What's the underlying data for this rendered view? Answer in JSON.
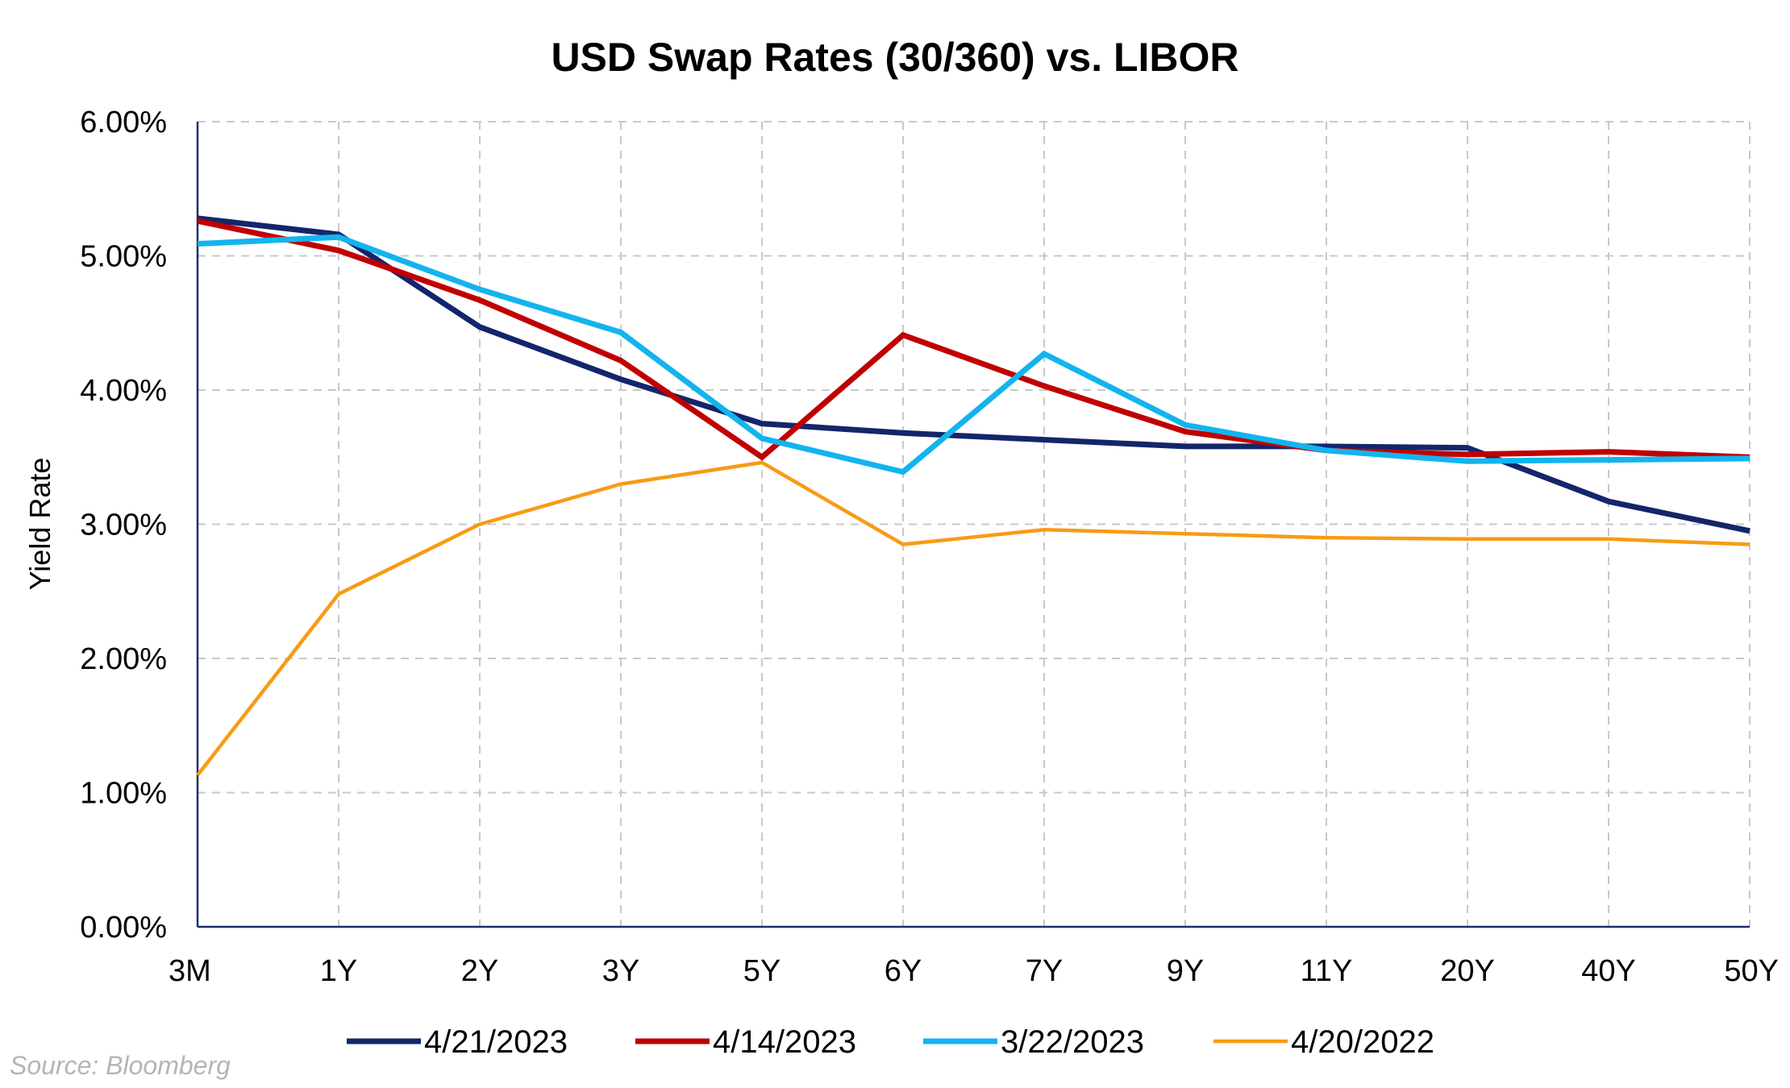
{
  "chart_data": {
    "type": "line",
    "title": "USD Swap Rates (30/360) vs. LIBOR",
    "xlabel": "",
    "ylabel": "Yield Rate",
    "categories": [
      "3M",
      "1Y",
      "2Y",
      "3Y",
      "5Y",
      "6Y",
      "7Y",
      "9Y",
      "11Y",
      "20Y",
      "40Y",
      "50Y"
    ],
    "ylim": [
      0,
      6
    ],
    "yticks": [
      0,
      1,
      2,
      3,
      4,
      5,
      6
    ],
    "ytick_labels": [
      "0.00%",
      "1.00%",
      "2.00%",
      "3.00%",
      "4.00%",
      "5.00%",
      "6.00%"
    ],
    "grid": true,
    "legend_position": "bottom",
    "series": [
      {
        "name": "4/21/2023",
        "color": "#13266b",
        "values": [
          5.28,
          5.16,
          4.47,
          4.08,
          3.75,
          3.68,
          3.63,
          3.58,
          3.58,
          3.57,
          3.17,
          2.95
        ]
      },
      {
        "name": "4/14/2023",
        "color": "#c00000",
        "values": [
          5.26,
          5.04,
          4.67,
          4.22,
          3.5,
          4.41,
          4.03,
          3.69,
          3.55,
          3.52,
          3.54,
          3.5
        ]
      },
      {
        "name": "3/22/2023",
        "color": "#13b4ee",
        "values": [
          5.09,
          5.14,
          4.75,
          4.43,
          3.64,
          3.39,
          4.27,
          3.74,
          3.55,
          3.47,
          3.48,
          3.49
        ]
      },
      {
        "name": "4/20/2022",
        "color": "#f89b14",
        "values": [
          1.13,
          2.48,
          3.0,
          3.3,
          3.46,
          2.85,
          2.96,
          2.93,
          2.9,
          2.89,
          2.89,
          2.85
        ]
      }
    ]
  },
  "source": "Source: Bloomberg"
}
